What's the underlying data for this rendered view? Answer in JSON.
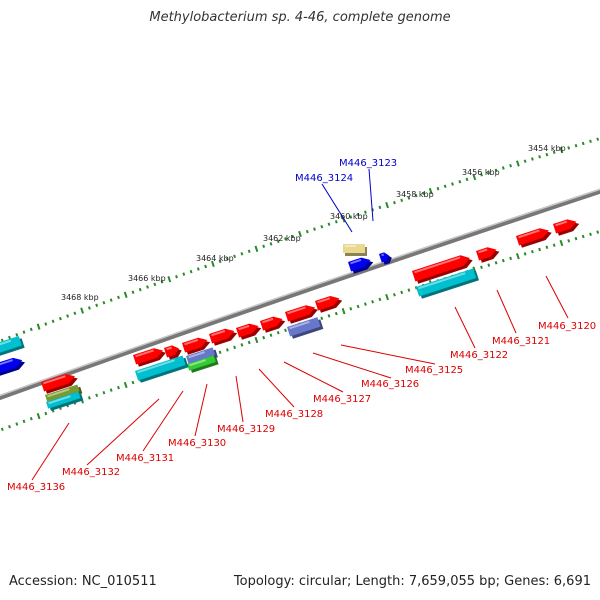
{
  "title": "Methylobacterium sp. 4-46, complete genome",
  "footer": {
    "accession": "Accession: NC_010511",
    "info": "Topology: circular; Length: 7,659,055 bp; Genes: 6,691"
  },
  "colors": {
    "backbone": "#8a8a8a",
    "tick_dots": "#2a8a2a",
    "forward_cds": "#ff0000",
    "reverse_cds": "#0000ee",
    "rna_teal": "#00c0d0",
    "olive": "#7a9a30",
    "slate": "#6677cc",
    "pale_yellow": "#e8d890",
    "label_red": "#dd0000",
    "label_blue": "#0000cc"
  },
  "scale_labels": [
    "3454 kbp",
    "3456 kbp",
    "3458 kbp",
    "3460 kbp",
    "3462 kbp",
    "3464 kbp",
    "3466 kbp",
    "3468 kbp"
  ],
  "gene_labels_red": [
    "M446_3120",
    "M446_3121",
    "M446_3122",
    "M446_3125",
    "M446_3126",
    "M446_3127",
    "M446_3128",
    "M446_3129",
    "M446_3130",
    "M446_3131",
    "M446_3132",
    "M446_3136"
  ],
  "gene_labels_blue": [
    "M446_3123",
    "M446_3124"
  ]
}
